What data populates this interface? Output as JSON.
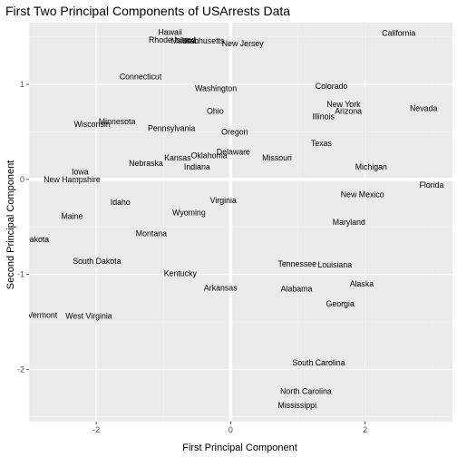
{
  "colors": {
    "panel_bg": "#ebebeb",
    "grid_major": "#ffffff",
    "grid_minor": "#f4f4f4",
    "reference_line": "#ffffff",
    "text": "#000000",
    "tick_text": "#4d4d4d"
  },
  "chart_data": {
    "type": "scatter",
    "marker": "text",
    "title": "First Two Principal Components of USArrests Data",
    "xlabel": "First Principal Component",
    "ylabel": "Second Principal Component",
    "xlim": [
      -3.0,
      3.3
    ],
    "ylim": [
      -2.55,
      1.65
    ],
    "x_ticks": [
      -2,
      0,
      2
    ],
    "y_ticks": [
      -2,
      -1,
      0,
      1
    ],
    "x_tick_labels": [
      "-2",
      "0",
      "2"
    ],
    "y_tick_labels": [
      "-2",
      "-1",
      "0",
      "1"
    ],
    "reference_lines": {
      "x": 0,
      "y": 0
    },
    "grid": true,
    "points": [
      {
        "label": "California",
        "x": 2.5,
        "y": 1.54
      },
      {
        "label": "Hawaii",
        "x": -0.9,
        "y": 1.55
      },
      {
        "label": "Rhode Island",
        "x": -0.87,
        "y": 1.47
      },
      {
        "label": "Massachusetts",
        "x": -0.49,
        "y": 1.46
      },
      {
        "label": "Utah",
        "x": -0.6,
        "y": 1.46
      },
      {
        "label": "New Jersey",
        "x": 0.18,
        "y": 1.43
      },
      {
        "label": "Connecticut",
        "x": -1.34,
        "y": 1.08
      },
      {
        "label": "Washington",
        "x": -0.22,
        "y": 0.96
      },
      {
        "label": "Colorado",
        "x": 1.5,
        "y": 0.98
      },
      {
        "label": "New York",
        "x": 1.68,
        "y": 0.79
      },
      {
        "label": "Arizona",
        "x": 1.75,
        "y": 0.72
      },
      {
        "label": "Illinois",
        "x": 1.38,
        "y": 0.66
      },
      {
        "label": "Nevada",
        "x": 2.87,
        "y": 0.75
      },
      {
        "label": "Ohio",
        "x": -0.23,
        "y": 0.72
      },
      {
        "label": "Minnesota",
        "x": -1.69,
        "y": 0.61
      },
      {
        "label": "Wisconsin",
        "x": -2.06,
        "y": 0.58
      },
      {
        "label": "Pennsylvania",
        "x": -0.88,
        "y": 0.54
      },
      {
        "label": "Oregon",
        "x": 0.06,
        "y": 0.5
      },
      {
        "label": "Texas",
        "x": 1.35,
        "y": 0.38
      },
      {
        "label": "Delaware",
        "x": 0.04,
        "y": 0.29
      },
      {
        "label": "Kansas",
        "x": -0.79,
        "y": 0.23
      },
      {
        "label": "Oklahoma",
        "x": -0.32,
        "y": 0.25
      },
      {
        "label": "Missouri",
        "x": 0.69,
        "y": 0.23
      },
      {
        "label": "Nebraska",
        "x": -1.26,
        "y": 0.17
      },
      {
        "label": "Indiana",
        "x": -0.5,
        "y": 0.13
      },
      {
        "label": "Michigan",
        "x": 2.09,
        "y": 0.13
      },
      {
        "label": "Iowa",
        "x": -2.24,
        "y": 0.08
      },
      {
        "label": "New Hampshire",
        "x": -2.36,
        "y": -0.0
      },
      {
        "label": "Florida",
        "x": 2.99,
        "y": -0.06
      },
      {
        "label": "New Mexico",
        "x": 1.96,
        "y": -0.16
      },
      {
        "label": "Idaho",
        "x": -1.64,
        "y": -0.24
      },
      {
        "label": "Virginia",
        "x": -0.11,
        "y": -0.22
      },
      {
        "label": "Wyoming",
        "x": -0.62,
        "y": -0.35
      },
      {
        "label": "Maine",
        "x": -2.36,
        "y": -0.39
      },
      {
        "label": "Maryland",
        "x": 1.76,
        "y": -0.45
      },
      {
        "label": "Montana",
        "x": -1.18,
        "y": -0.57
      },
      {
        "label": "North Dakota",
        "x": -3.05,
        "y": -0.63
      },
      {
        "label": "South Dakota",
        "x": -1.99,
        "y": -0.86
      },
      {
        "label": "Tennessee",
        "x": 0.99,
        "y": -0.89
      },
      {
        "label": "Louisiana",
        "x": 1.55,
        "y": -0.9
      },
      {
        "label": "Kentucky",
        "x": -0.75,
        "y": -0.99
      },
      {
        "label": "Alaska",
        "x": 1.95,
        "y": -1.1
      },
      {
        "label": "Arkansas",
        "x": -0.15,
        "y": -1.14
      },
      {
        "label": "Alabama",
        "x": 0.98,
        "y": -1.15
      },
      {
        "label": "Georgia",
        "x": 1.63,
        "y": -1.31
      },
      {
        "label": "Vermont",
        "x": -2.8,
        "y": -1.43
      },
      {
        "label": "West Virginia",
        "x": -2.11,
        "y": -1.44
      },
      {
        "label": "South Carolina",
        "x": 1.31,
        "y": -1.93
      },
      {
        "label": "North Carolina",
        "x": 1.12,
        "y": -2.23
      },
      {
        "label": "Mississippi",
        "x": 0.99,
        "y": -2.38
      }
    ]
  }
}
